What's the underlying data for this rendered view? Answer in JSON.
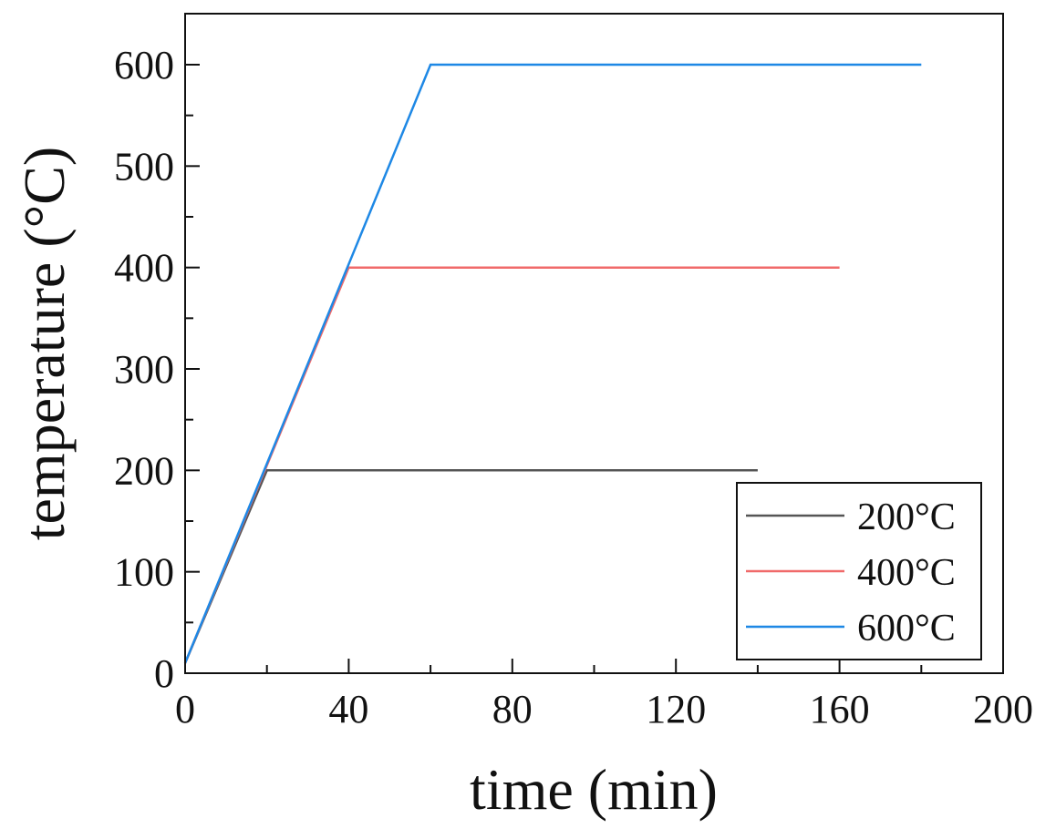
{
  "chart_data": {
    "type": "line",
    "title": "",
    "xlabel": "time (min)",
    "ylabel": "temperature (°C)",
    "xlim": [
      0,
      200
    ],
    "ylim": [
      0,
      600
    ],
    "x_ticks": [
      0,
      40,
      80,
      120,
      160,
      200
    ],
    "y_ticks": [
      0,
      100,
      200,
      300,
      400,
      500,
      600
    ],
    "grid": false,
    "legend_position": "bottom-right",
    "series": [
      {
        "name": "200°C",
        "color": "#555555",
        "points": [
          [
            0,
            10
          ],
          [
            20,
            200
          ],
          [
            140,
            200
          ]
        ]
      },
      {
        "name": "400°C",
        "color": "#f06a6a",
        "points": [
          [
            0,
            10
          ],
          [
            40,
            400
          ],
          [
            160,
            400
          ]
        ]
      },
      {
        "name": "600°C",
        "color": "#1e88e5",
        "points": [
          [
            0,
            10
          ],
          [
            60,
            600
          ],
          [
            180,
            600
          ]
        ]
      }
    ]
  }
}
